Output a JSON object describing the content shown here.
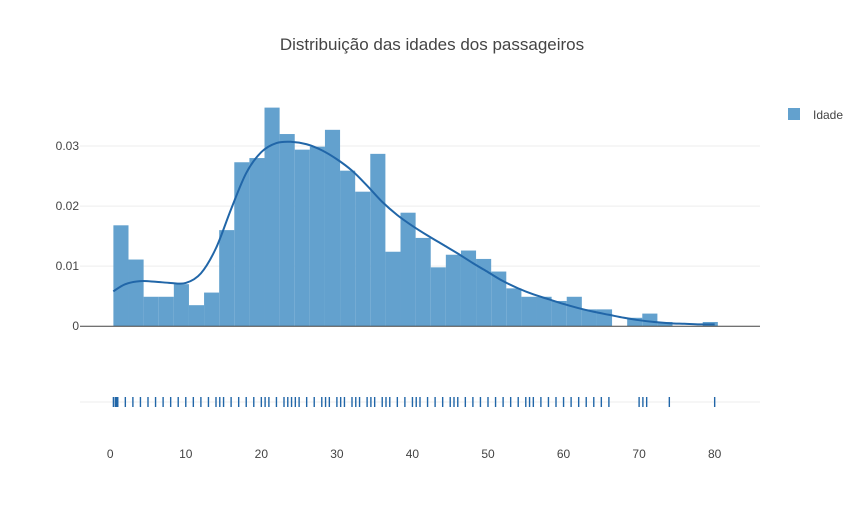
{
  "chart_data": {
    "type": "histogram",
    "title": "Distribuição das idades dos passageiros",
    "legend": {
      "placement": "top-right",
      "entries": [
        "Idade"
      ]
    },
    "colors": {
      "bars": "#5b9ccb",
      "curve": "#2166a8",
      "rug": "#2166a8",
      "grid": "#eeeeee",
      "zeroline": "#444444",
      "text": "#444444"
    },
    "bin_width": 2,
    "x_range": [
      -4,
      86
    ],
    "y_range": [
      -0.0008,
      0.0385
    ],
    "x_ticks": [
      0,
      10,
      20,
      30,
      40,
      50,
      60,
      70,
      80
    ],
    "y_ticks": [
      0,
      0.01,
      0.02,
      0.03
    ],
    "y_tick_labels": [
      "0",
      "0.01",
      "0.02",
      "0.03"
    ],
    "series": [
      {
        "name": "Idade",
        "bins": [
          {
            "x0": 0.42,
            "y": 0.0168
          },
          {
            "x0": 2.42,
            "y": 0.0111
          },
          {
            "x0": 4.42,
            "y": 0.0049
          },
          {
            "x0": 6.42,
            "y": 0.0049
          },
          {
            "x0": 8.42,
            "y": 0.007
          },
          {
            "x0": 10.42,
            "y": 0.0035
          },
          {
            "x0": 12.42,
            "y": 0.0056
          },
          {
            "x0": 14.42,
            "y": 0.016
          },
          {
            "x0": 16.42,
            "y": 0.0273
          },
          {
            "x0": 18.42,
            "y": 0.028
          },
          {
            "x0": 20.42,
            "y": 0.0364
          },
          {
            "x0": 22.42,
            "y": 0.032
          },
          {
            "x0": 24.42,
            "y": 0.0294
          },
          {
            "x0": 26.42,
            "y": 0.0299
          },
          {
            "x0": 28.42,
            "y": 0.0327
          },
          {
            "x0": 30.42,
            "y": 0.0259
          },
          {
            "x0": 32.42,
            "y": 0.0224
          },
          {
            "x0": 34.42,
            "y": 0.0287
          },
          {
            "x0": 36.42,
            "y": 0.0124
          },
          {
            "x0": 38.42,
            "y": 0.0189
          },
          {
            "x0": 40.42,
            "y": 0.0147
          },
          {
            "x0": 42.42,
            "y": 0.0098
          },
          {
            "x0": 44.42,
            "y": 0.0119
          },
          {
            "x0": 46.42,
            "y": 0.0126
          },
          {
            "x0": 48.42,
            "y": 0.0112
          },
          {
            "x0": 50.42,
            "y": 0.0091
          },
          {
            "x0": 52.42,
            "y": 0.0063
          },
          {
            "x0": 54.42,
            "y": 0.0049
          },
          {
            "x0": 56.42,
            "y": 0.0049
          },
          {
            "x0": 58.42,
            "y": 0.0042
          },
          {
            "x0": 60.42,
            "y": 0.0049
          },
          {
            "x0": 62.42,
            "y": 0.0028
          },
          {
            "x0": 64.42,
            "y": 0.0028
          },
          {
            "x0": 66.42,
            "y": 0.0
          },
          {
            "x0": 68.42,
            "y": 0.0014
          },
          {
            "x0": 70.42,
            "y": 0.0021
          },
          {
            "x0": 72.42,
            "y": 0.0007
          },
          {
            "x0": 74.42,
            "y": 0.0
          },
          {
            "x0": 76.42,
            "y": 0.0
          },
          {
            "x0": 78.42,
            "y": 0.0007
          }
        ]
      },
      {
        "type": "line",
        "x": [
          0.4,
          2,
          4,
          6,
          8,
          10,
          12,
          14,
          16,
          18,
          20,
          22,
          24,
          26,
          28,
          30,
          32,
          34,
          36,
          38,
          40,
          42,
          44,
          46,
          48,
          50,
          52,
          54,
          56,
          58,
          60,
          62,
          64,
          66,
          68,
          70,
          72,
          74,
          76,
          78,
          80
        ],
        "y": [
          0.0058,
          0.007,
          0.0075,
          0.0074,
          0.0072,
          0.0072,
          0.0088,
          0.013,
          0.0195,
          0.0255,
          0.029,
          0.0305,
          0.0307,
          0.0303,
          0.0293,
          0.0278,
          0.0259,
          0.0234,
          0.0207,
          0.0185,
          0.0167,
          0.0151,
          0.0136,
          0.0121,
          0.0105,
          0.009,
          0.0075,
          0.0063,
          0.0053,
          0.0045,
          0.0037,
          0.003,
          0.0024,
          0.0019,
          0.0014,
          0.001,
          0.0007,
          0.0005,
          0.0004,
          0.0003,
          0.0003
        ]
      },
      {
        "type": "rug",
        "x": [
          0.42,
          0.67,
          0.75,
          0.83,
          0.92,
          1,
          2,
          3,
          4,
          5,
          6,
          7,
          8,
          9,
          10,
          11,
          12,
          13,
          14,
          14.5,
          15,
          16,
          17,
          18,
          19,
          20,
          20.5,
          21,
          22,
          23,
          23.5,
          24,
          24.5,
          25,
          26,
          27,
          28,
          28.5,
          29,
          30,
          30.5,
          31,
          32,
          32.5,
          33,
          34,
          34.5,
          35,
          36,
          36.5,
          37,
          38,
          39,
          40,
          40.5,
          41,
          42,
          43,
          44,
          45,
          45.5,
          46,
          47,
          48,
          49,
          50,
          51,
          52,
          53,
          54,
          55,
          55.5,
          56,
          57,
          58,
          59,
          60,
          61,
          62,
          63,
          64,
          65,
          66,
          70,
          70.5,
          71,
          74,
          80
        ]
      }
    ]
  }
}
